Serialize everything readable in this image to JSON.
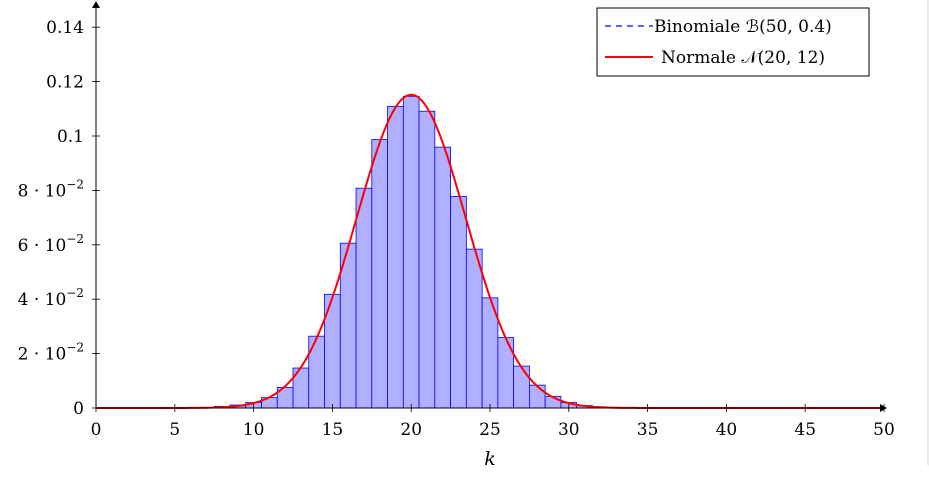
{
  "chart_data": {
    "type": "bar",
    "xlabel": "k",
    "ylabel": "",
    "xlim": [
      0,
      50
    ],
    "ylim": [
      0,
      0.15
    ],
    "x_ticks": [
      0,
      5,
      10,
      15,
      20,
      25,
      30,
      35,
      40,
      45,
      50
    ],
    "x_tick_labels": [
      "0",
      "5",
      "10",
      "15",
      "20",
      "25",
      "30",
      "35",
      "40",
      "45",
      "50"
    ],
    "y_ticks": [
      0,
      0.02,
      0.04,
      0.06,
      0.08,
      0.1,
      0.12,
      0.14
    ],
    "y_tick_labels": [
      {
        "mantissa": "0",
        "exponent": ""
      },
      {
        "mantissa": "2 · 10",
        "exponent": "−2"
      },
      {
        "mantissa": "4 · 10",
        "exponent": "−2"
      },
      {
        "mantissa": "6 · 10",
        "exponent": "−2"
      },
      {
        "mantissa": "8 · 10",
        "exponent": "−2"
      },
      {
        "mantissa": "0.1",
        "exponent": ""
      },
      {
        "mantissa": "0.12",
        "exponent": ""
      },
      {
        "mantissa": "0.14",
        "exponent": ""
      }
    ],
    "grid": false,
    "legend_position": "top-right",
    "series": [
      {
        "name": "Binomiale ℬ(50, 0.4)",
        "kind": "bar",
        "color": "#0000ff",
        "fill": "#b0b0ff",
        "x": [
          5,
          6,
          7,
          8,
          9,
          10,
          11,
          12,
          13,
          14,
          15,
          16,
          17,
          18,
          19,
          20,
          21,
          22,
          23,
          24,
          25,
          26,
          27,
          28,
          29,
          30,
          31,
          32,
          33,
          34,
          35
        ],
        "values": [
          0.0,
          0.0001,
          0.0002,
          0.0006,
          0.0011,
          0.002,
          0.0038,
          0.0076,
          0.0147,
          0.0264,
          0.0418,
          0.0606,
          0.0808,
          0.0987,
          0.1109,
          0.1146,
          0.1091,
          0.0959,
          0.0778,
          0.0584,
          0.0405,
          0.0259,
          0.0154,
          0.0084,
          0.0043,
          0.002,
          0.0009,
          0.0004,
          0.0001,
          0.0,
          0.0
        ]
      },
      {
        "name": "Normale 𝒩(20, 12)",
        "kind": "line",
        "color": "#ff0000",
        "mean": 20,
        "variance": 12
      }
    ]
  }
}
